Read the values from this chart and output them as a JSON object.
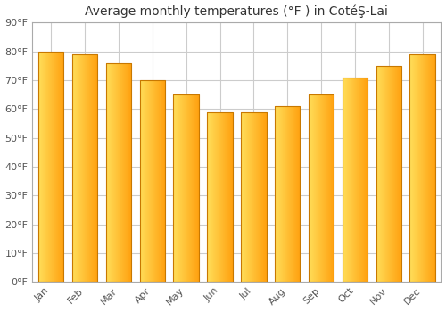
{
  "title": "Average monthly temperatures (°F ) in CotéŞ-Lai",
  "months": [
    "Jan",
    "Feb",
    "Mar",
    "Apr",
    "May",
    "Jun",
    "Jul",
    "Aug",
    "Sep",
    "Oct",
    "Nov",
    "Dec"
  ],
  "values": [
    80,
    79,
    76,
    70,
    65,
    59,
    59,
    61,
    65,
    71,
    75,
    79
  ],
  "bar_color_left": "#FFD966",
  "bar_color_right": "#FFA010",
  "bar_edge_color": "#C87800",
  "ylim": [
    0,
    90
  ],
  "yticks": [
    0,
    10,
    20,
    30,
    40,
    50,
    60,
    70,
    80,
    90
  ],
  "background_color": "#ffffff",
  "grid_color": "#cccccc",
  "title_fontsize": 10,
  "tick_fontsize": 8,
  "figsize": [
    5.0,
    3.5
  ],
  "dpi": 100,
  "bar_width": 0.75
}
